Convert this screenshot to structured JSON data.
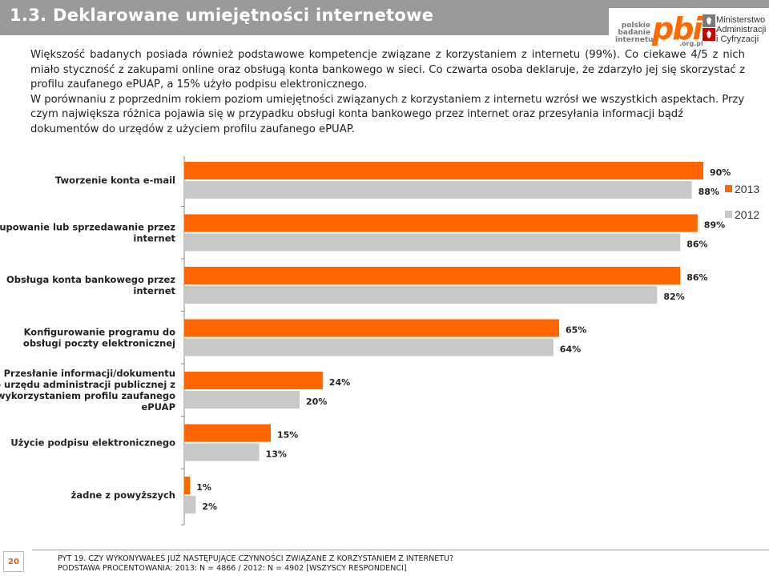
{
  "header": {
    "title": "1.3. Deklarowane umiejętności internetowe"
  },
  "logos": {
    "pbi_small": [
      "polskie",
      "badanie",
      "internetu"
    ],
    "pbi_main": "pbi",
    "pbi_domain": ".org.pl",
    "ministry": [
      "Ministerstwo",
      "Administracji",
      "i Cyfryzacji"
    ]
  },
  "intro": {
    "p1": "Większość badanych posiada również podstawowe kompetencje związane z korzystaniem z internetu (99%). Co ciekawe 4/5 z nich miało styczność z zakupami online oraz obsługą konta bankowego w sieci. Co czwarta osoba deklaruje, że zdarzyło jej się skorzystać z profilu zaufanego ePUAP, a 15% użyło podpisu elektronicznego.",
    "p2": "W porównaniu z poprzednim rokiem poziom umiejętności związanych z korzystaniem z internetu wzrósł we wszystkich aspektach. Przy czym największa różnica pojawia się w przypadku obsługi konta bankowego przez internet oraz przesyłania informacji bądź dokumentów do urzędów z użyciem profilu zaufanego ePUAP."
  },
  "chart_data": {
    "type": "bar",
    "orientation": "horizontal",
    "categories": [
      "Tworzenie konta e-mail",
      "Kupowanie lub sprzedawanie przez internet",
      "Obsługa konta bankowego przez internet",
      "Konfigurowanie programu do obsługi poczty elektronicznej",
      "Przesłanie informacji/dokumentu do urzędu administracji publicznej z wykorzystaniem profilu zaufanego ePUAP",
      "Użycie podpisu elektronicznego",
      "żadne z powyższych"
    ],
    "category_lines": [
      [
        "Tworzenie konta e-mail"
      ],
      [
        "Kupowanie lub sprzedawanie przez",
        "internet"
      ],
      [
        "Obsługa konta bankowego przez",
        "internet"
      ],
      [
        "Konfigurowanie programu do",
        "obsługi poczty elektronicznej"
      ],
      [
        "Przesłanie informacji/dokumentu",
        "do urzędu administracji publicznej z",
        "wykorzystaniem profilu zaufanego",
        "ePUAP"
      ],
      [
        "Użycie podpisu elektronicznego"
      ],
      [
        "żadne z powyższych"
      ]
    ],
    "series": [
      {
        "name": "2013",
        "color": "#ff6600",
        "values": [
          90,
          89,
          86,
          65,
          24,
          15,
          1
        ]
      },
      {
        "name": "2012",
        "color": "#c8c8c8",
        "values": [
          88,
          86,
          82,
          64,
          20,
          13,
          2
        ]
      }
    ],
    "value_suffix": "%",
    "xlim": [
      0,
      100
    ],
    "grid": false,
    "legend": "top-right"
  },
  "footer": {
    "page": "20",
    "question": "PYT 19. CZY WYKONYWAŁEŚ JUŻ NASTĘPUJĄCE CZYNNOŚCI ZWIĄZANE Z KORZYSTANIEM Z INTERNETU?",
    "base": "PODSTAWA PROCENTOWANIA: 2013: N = 4866 / 2012: N = 4902 [WSZYSCY RESPONDENCI]"
  }
}
